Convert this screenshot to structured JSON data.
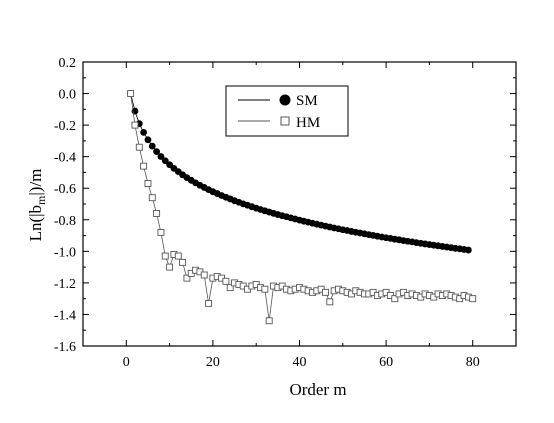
{
  "chart_data": {
    "type": "line",
    "xlabel": "Order m",
    "ylabel_main": "Ln(|b",
    "ylabel_sub": "m",
    "ylabel_tail": "|)/m",
    "xlim": [
      -10,
      90
    ],
    "ylim": [
      -1.6,
      0.2
    ],
    "xticks": [
      0,
      20,
      40,
      60,
      80
    ],
    "yticks": [
      0.2,
      0.0,
      -0.2,
      -0.4,
      -0.6,
      -0.8,
      -1.0,
      -1.2,
      -1.4,
      -1.6
    ],
    "xtick_labels": [
      "0",
      "20",
      "40",
      "60",
      "80"
    ],
    "ytick_labels": [
      "0.2",
      "0.0",
      "-0.2",
      "-0.4",
      "-0.6",
      "-0.8",
      "-1.0",
      "-1.2",
      "-1.4",
      "-1.6"
    ],
    "grid": false,
    "legend_position": "top-center",
    "series": [
      {
        "name": "SM",
        "marker": "filled-circle",
        "color": "#000000",
        "x": [
          1,
          2,
          3,
          4,
          5,
          6,
          7,
          8,
          9,
          10,
          11,
          12,
          13,
          14,
          15,
          16,
          17,
          18,
          19,
          20,
          21,
          22,
          23,
          24,
          25,
          26,
          27,
          28,
          29,
          30,
          31,
          32,
          33,
          34,
          35,
          36,
          37,
          38,
          39,
          40,
          41,
          42,
          43,
          44,
          45,
          46,
          47,
          48,
          49,
          50,
          51,
          52,
          53,
          54,
          55,
          56,
          57,
          58,
          59,
          60,
          61,
          62,
          63,
          64,
          65,
          66,
          67,
          68,
          69,
          70,
          71,
          72,
          73,
          74,
          75,
          76,
          77,
          78,
          79
        ],
        "y": [
          0.0,
          -0.111,
          -0.191,
          -0.246,
          -0.293,
          -0.333,
          -0.368,
          -0.399,
          -0.426,
          -0.451,
          -0.474,
          -0.495,
          -0.515,
          -0.533,
          -0.55,
          -0.566,
          -0.581,
          -0.595,
          -0.609,
          -0.622,
          -0.634,
          -0.646,
          -0.657,
          -0.668,
          -0.679,
          -0.689,
          -0.699,
          -0.708,
          -0.717,
          -0.726,
          -0.735,
          -0.743,
          -0.751,
          -0.759,
          -0.767,
          -0.774,
          -0.781,
          -0.788,
          -0.795,
          -0.802,
          -0.809,
          -0.815,
          -0.822,
          -0.828,
          -0.834,
          -0.84,
          -0.846,
          -0.852,
          -0.857,
          -0.863,
          -0.868,
          -0.874,
          -0.879,
          -0.884,
          -0.889,
          -0.894,
          -0.899,
          -0.904,
          -0.909,
          -0.914,
          -0.918,
          -0.923,
          -0.927,
          -0.932,
          -0.936,
          -0.94,
          -0.945,
          -0.949,
          -0.953,
          -0.957,
          -0.961,
          -0.965,
          -0.969,
          -0.973,
          -0.977,
          -0.981,
          -0.984,
          -0.988,
          -0.992
        ]
      },
      {
        "name": "HM",
        "marker": "open-square",
        "color": "#555555",
        "x": [
          1,
          2,
          3,
          4,
          5,
          6,
          7,
          8,
          9,
          10,
          11,
          12,
          13,
          14,
          15,
          16,
          17,
          18,
          19,
          20,
          21,
          22,
          23,
          24,
          25,
          26,
          27,
          28,
          29,
          30,
          31,
          32,
          33,
          34,
          35,
          36,
          37,
          38,
          39,
          40,
          41,
          42,
          43,
          44,
          45,
          46,
          47,
          48,
          49,
          50,
          51,
          52,
          53,
          54,
          55,
          56,
          57,
          58,
          59,
          60,
          61,
          62,
          63,
          64,
          65,
          66,
          67,
          68,
          69,
          70,
          71,
          72,
          73,
          74,
          75,
          76,
          77,
          78,
          79,
          80
        ],
        "y": [
          0.0,
          -0.2,
          -0.34,
          -0.46,
          -0.57,
          -0.66,
          -0.76,
          -0.88,
          -1.03,
          -1.1,
          -1.02,
          -1.03,
          -1.07,
          -1.17,
          -1.14,
          -1.12,
          -1.13,
          -1.15,
          -1.33,
          -1.17,
          -1.16,
          -1.17,
          -1.19,
          -1.23,
          -1.2,
          -1.21,
          -1.22,
          -1.24,
          -1.22,
          -1.21,
          -1.23,
          -1.24,
          -1.44,
          -1.22,
          -1.23,
          -1.22,
          -1.24,
          -1.25,
          -1.24,
          -1.23,
          -1.24,
          -1.25,
          -1.26,
          -1.25,
          -1.24,
          -1.26,
          -1.32,
          -1.25,
          -1.24,
          -1.25,
          -1.26,
          -1.27,
          -1.25,
          -1.26,
          -1.27,
          -1.27,
          -1.26,
          -1.28,
          -1.27,
          -1.26,
          -1.28,
          -1.3,
          -1.27,
          -1.26,
          -1.28,
          -1.27,
          -1.28,
          -1.29,
          -1.27,
          -1.28,
          -1.29,
          -1.27,
          -1.28,
          -1.27,
          -1.28,
          -1.29,
          -1.3,
          -1.28,
          -1.29,
          -1.3
        ]
      }
    ]
  }
}
